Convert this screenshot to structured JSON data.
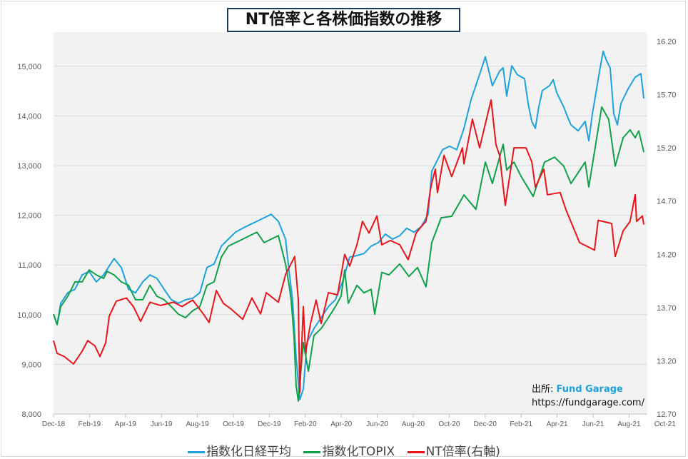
{
  "chart_data": {
    "type": "line",
    "title": "NT倍率と各株価指数の推移",
    "x_unit": "months since Dec-18",
    "x_tick_labels": [
      "Dec-18",
      "Feb-19",
      "Apr-19",
      "Jun-19",
      "Aug-19",
      "Oct-19",
      "Dec-19",
      "Feb-20",
      "Apr-20",
      "Jun-20",
      "Aug-20",
      "Oct-20",
      "Dec-20",
      "Feb-21",
      "Apr-21",
      "Jun-21",
      "Aug-21",
      "Oct-21"
    ],
    "y_left": {
      "min": 8000,
      "max": 15500,
      "ticks": [
        "8,000",
        "9,000",
        "10,000",
        "11,000",
        "12,000",
        "13,000",
        "14,000",
        "15,000"
      ],
      "tick_values": [
        8000,
        9000,
        10000,
        11000,
        12000,
        13000,
        14000,
        15000
      ]
    },
    "y_right": {
      "min": 12.7,
      "max": 16.2,
      "ticks": [
        "12.70",
        "13.20",
        "13.70",
        "14.20",
        "14.70",
        "15.20",
        "15.70",
        "16.20"
      ],
      "tick_values": [
        12.7,
        13.2,
        13.7,
        14.2,
        14.7,
        15.2,
        15.7,
        16.2
      ]
    },
    "grid": "horizontal",
    "legend_position": "bottom",
    "series": [
      {
        "name": "指数化日経平均",
        "axis": "left",
        "color": "#1ea1dc",
        "points": [
          [
            0,
            10010
          ],
          [
            0.2,
            9800
          ],
          [
            0.4,
            10230
          ],
          [
            0.79,
            10440
          ],
          [
            1.19,
            10510
          ],
          [
            1.59,
            10800
          ],
          [
            1.98,
            10870
          ],
          [
            2.38,
            10660
          ],
          [
            2.78,
            10800
          ],
          [
            3.17,
            11020
          ],
          [
            3.37,
            11130
          ],
          [
            3.77,
            10950
          ],
          [
            4.17,
            10510
          ],
          [
            4.56,
            10440
          ],
          [
            4.96,
            10660
          ],
          [
            5.36,
            10800
          ],
          [
            5.75,
            10730
          ],
          [
            6.15,
            10510
          ],
          [
            6.55,
            10300
          ],
          [
            6.94,
            10230
          ],
          [
            7.34,
            10300
          ],
          [
            7.74,
            10330
          ],
          [
            8.13,
            10440
          ],
          [
            8.53,
            10950
          ],
          [
            8.93,
            11020
          ],
          [
            9.33,
            11380
          ],
          [
            9.72,
            11520
          ],
          [
            10.12,
            11660
          ],
          [
            10.52,
            11740
          ],
          [
            10.91,
            11810
          ],
          [
            11.31,
            11880
          ],
          [
            11.71,
            11950
          ],
          [
            12.1,
            12020
          ],
          [
            12.5,
            11880
          ],
          [
            12.9,
            11520
          ],
          [
            13.1,
            10870
          ],
          [
            13.29,
            10300
          ],
          [
            13.49,
            9150
          ],
          [
            13.69,
            8290
          ],
          [
            13.89,
            8500
          ],
          [
            14.09,
            9440
          ],
          [
            14.48,
            9720
          ],
          [
            14.88,
            9940
          ],
          [
            15.28,
            10160
          ],
          [
            15.67,
            10300
          ],
          [
            16.07,
            10660
          ],
          [
            16.47,
            11160
          ],
          [
            16.87,
            11190
          ],
          [
            17.26,
            11230
          ],
          [
            17.66,
            11380
          ],
          [
            18.06,
            11450
          ],
          [
            18.45,
            11620
          ],
          [
            18.85,
            11520
          ],
          [
            19.25,
            11590
          ],
          [
            19.64,
            11740
          ],
          [
            20.04,
            11660
          ],
          [
            20.44,
            11770
          ],
          [
            20.83,
            12020
          ],
          [
            21.03,
            12890
          ],
          [
            21.23,
            13030
          ],
          [
            21.63,
            13320
          ],
          [
            22.02,
            13390
          ],
          [
            22.42,
            13320
          ],
          [
            22.82,
            13750
          ],
          [
            23.21,
            14320
          ],
          [
            23.61,
            14750
          ],
          [
            24.01,
            15190
          ],
          [
            24.4,
            14610
          ],
          [
            24.8,
            14900
          ],
          [
            25.0,
            14970
          ],
          [
            25.2,
            14400
          ],
          [
            25.48,
            15010
          ],
          [
            25.79,
            14830
          ],
          [
            26.19,
            14750
          ],
          [
            26.39,
            14250
          ],
          [
            26.59,
            13890
          ],
          [
            26.79,
            13750
          ],
          [
            26.98,
            14180
          ],
          [
            27.18,
            14510
          ],
          [
            27.58,
            14610
          ],
          [
            27.78,
            14730
          ],
          [
            27.98,
            14470
          ],
          [
            28.37,
            14180
          ],
          [
            28.57,
            13990
          ],
          [
            28.77,
            13820
          ],
          [
            29.17,
            13700
          ],
          [
            29.56,
            13890
          ],
          [
            29.76,
            13500
          ],
          [
            29.96,
            14040
          ],
          [
            30.36,
            14900
          ],
          [
            30.56,
            15300
          ],
          [
            30.75,
            15110
          ],
          [
            30.95,
            14970
          ],
          [
            31.15,
            14040
          ],
          [
            31.35,
            13820
          ],
          [
            31.55,
            14250
          ],
          [
            31.94,
            14540
          ],
          [
            32.34,
            14780
          ],
          [
            32.66,
            14850
          ],
          [
            32.82,
            14350
          ]
        ]
      },
      {
        "name": "指数化TOPIX",
        "axis": "left",
        "color": "#10a04a",
        "points": [
          [
            0,
            10010
          ],
          [
            0.2,
            9800
          ],
          [
            0.4,
            10160
          ],
          [
            0.79,
            10370
          ],
          [
            1.19,
            10660
          ],
          [
            1.59,
            10660
          ],
          [
            1.98,
            10900
          ],
          [
            2.38,
            10800
          ],
          [
            2.78,
            10730
          ],
          [
            2.98,
            10870
          ],
          [
            3.37,
            10800
          ],
          [
            3.77,
            10660
          ],
          [
            4.17,
            10590
          ],
          [
            4.56,
            10300
          ],
          [
            4.96,
            10300
          ],
          [
            5.36,
            10590
          ],
          [
            5.75,
            10370
          ],
          [
            6.15,
            10300
          ],
          [
            6.55,
            10160
          ],
          [
            6.94,
            10010
          ],
          [
            7.34,
            9940
          ],
          [
            7.74,
            10080
          ],
          [
            8.13,
            10160
          ],
          [
            8.53,
            10590
          ],
          [
            8.93,
            10660
          ],
          [
            9.33,
            11160
          ],
          [
            9.72,
            11380
          ],
          [
            10.12,
            11450
          ],
          [
            10.52,
            11520
          ],
          [
            10.91,
            11590
          ],
          [
            11.31,
            11660
          ],
          [
            11.71,
            11450
          ],
          [
            12.1,
            11520
          ],
          [
            12.5,
            11590
          ],
          [
            12.9,
            11020
          ],
          [
            13.1,
            10590
          ],
          [
            13.21,
            10300
          ],
          [
            13.37,
            9580
          ],
          [
            13.49,
            8570
          ],
          [
            13.61,
            8260
          ],
          [
            13.89,
            9440
          ],
          [
            14.17,
            8860
          ],
          [
            14.48,
            9580
          ],
          [
            14.88,
            9720
          ],
          [
            15.28,
            9940
          ],
          [
            15.67,
            10160
          ],
          [
            15.99,
            10370
          ],
          [
            16.19,
            10900
          ],
          [
            16.39,
            10230
          ],
          [
            16.87,
            10590
          ],
          [
            17.26,
            10440
          ],
          [
            17.66,
            10510
          ],
          [
            17.86,
            10010
          ],
          [
            18.25,
            10850
          ],
          [
            18.65,
            10800
          ],
          [
            19.25,
            11020
          ],
          [
            19.76,
            10770
          ],
          [
            20.24,
            10950
          ],
          [
            20.71,
            10560
          ],
          [
            21.03,
            11450
          ],
          [
            21.55,
            11950
          ],
          [
            22.14,
            11980
          ],
          [
            22.82,
            12410
          ],
          [
            23.49,
            12120
          ],
          [
            24.01,
            13070
          ],
          [
            24.4,
            12640
          ],
          [
            25.0,
            13430
          ],
          [
            25.2,
            12910
          ],
          [
            25.6,
            13070
          ],
          [
            25.99,
            12790
          ],
          [
            26.67,
            12380
          ],
          [
            27.3,
            13070
          ],
          [
            27.86,
            13170
          ],
          [
            28.37,
            12990
          ],
          [
            28.77,
            12640
          ],
          [
            29.56,
            13070
          ],
          [
            29.76,
            12570
          ],
          [
            30.48,
            14180
          ],
          [
            30.87,
            13930
          ],
          [
            31.23,
            12990
          ],
          [
            31.67,
            13560
          ],
          [
            32.06,
            13720
          ],
          [
            32.34,
            13560
          ],
          [
            32.54,
            13700
          ],
          [
            32.82,
            13270
          ]
        ]
      },
      {
        "name": "NT倍率(右軸)",
        "axis": "right",
        "color": "#e8141b",
        "points": [
          [
            0,
            13.39
          ],
          [
            0.2,
            13.27
          ],
          [
            0.6,
            13.24
          ],
          [
            1.11,
            13.17
          ],
          [
            1.59,
            13.29
          ],
          [
            1.9,
            13.39
          ],
          [
            2.3,
            13.34
          ],
          [
            2.58,
            13.24
          ],
          [
            2.9,
            13.37
          ],
          [
            3.1,
            13.62
          ],
          [
            3.49,
            13.76
          ],
          [
            4.05,
            13.79
          ],
          [
            4.44,
            13.71
          ],
          [
            4.84,
            13.57
          ],
          [
            5.36,
            13.75
          ],
          [
            5.95,
            13.72
          ],
          [
            6.67,
            13.75
          ],
          [
            7.14,
            13.71
          ],
          [
            7.74,
            13.77
          ],
          [
            8.33,
            13.64
          ],
          [
            8.65,
            13.56
          ],
          [
            9.05,
            13.86
          ],
          [
            9.44,
            13.74
          ],
          [
            9.84,
            13.69
          ],
          [
            10.52,
            13.59
          ],
          [
            11.03,
            13.79
          ],
          [
            11.51,
            13.64
          ],
          [
            11.83,
            13.84
          ],
          [
            12.5,
            13.75
          ],
          [
            12.9,
            14.01
          ],
          [
            13.41,
            14.18
          ],
          [
            13.61,
            13.77
          ],
          [
            13.69,
            12.9
          ],
          [
            13.89,
            13.71
          ],
          [
            14.01,
            13.28
          ],
          [
            14.29,
            13.55
          ],
          [
            14.6,
            13.77
          ],
          [
            14.88,
            13.55
          ],
          [
            15.28,
            13.84
          ],
          [
            15.79,
            13.82
          ],
          [
            16.19,
            14.2
          ],
          [
            16.47,
            14.09
          ],
          [
            16.87,
            14.29
          ],
          [
            17.18,
            14.51
          ],
          [
            17.54,
            14.4
          ],
          [
            17.98,
            14.56
          ],
          [
            18.25,
            14.29
          ],
          [
            18.73,
            14.33
          ],
          [
            19.25,
            14.29
          ],
          [
            19.72,
            14.15
          ],
          [
            20.16,
            14.4
          ],
          [
            20.44,
            14.46
          ],
          [
            20.71,
            14.51
          ],
          [
            20.95,
            14.8
          ],
          [
            21.03,
            14.87
          ],
          [
            21.23,
            15.0
          ],
          [
            21.35,
            14.78
          ],
          [
            21.71,
            15.13
          ],
          [
            22.14,
            14.93
          ],
          [
            22.74,
            15.2
          ],
          [
            22.82,
            15.05
          ],
          [
            23.29,
            15.47
          ],
          [
            23.69,
            15.2
          ],
          [
            24.33,
            15.65
          ],
          [
            24.6,
            15.23
          ],
          [
            24.8,
            15.13
          ],
          [
            25.12,
            14.66
          ],
          [
            25.6,
            15.2
          ],
          [
            26.27,
            15.2
          ],
          [
            26.59,
            15.07
          ],
          [
            26.79,
            14.83
          ],
          [
            27.26,
            15.0
          ],
          [
            27.46,
            14.76
          ],
          [
            28.17,
            14.78
          ],
          [
            28.49,
            14.62
          ],
          [
            29.25,
            14.31
          ],
          [
            30.08,
            14.24
          ],
          [
            30.28,
            14.52
          ],
          [
            31.03,
            14.49
          ],
          [
            31.23,
            14.18
          ],
          [
            31.67,
            14.42
          ],
          [
            32.06,
            14.51
          ],
          [
            32.34,
            14.76
          ],
          [
            32.42,
            14.51
          ],
          [
            32.74,
            14.56
          ],
          [
            32.82,
            14.48
          ]
        ]
      }
    ]
  },
  "source": {
    "label": "出所:",
    "brand": "Fund Garage",
    "url": "https://fundgarage.com/"
  }
}
